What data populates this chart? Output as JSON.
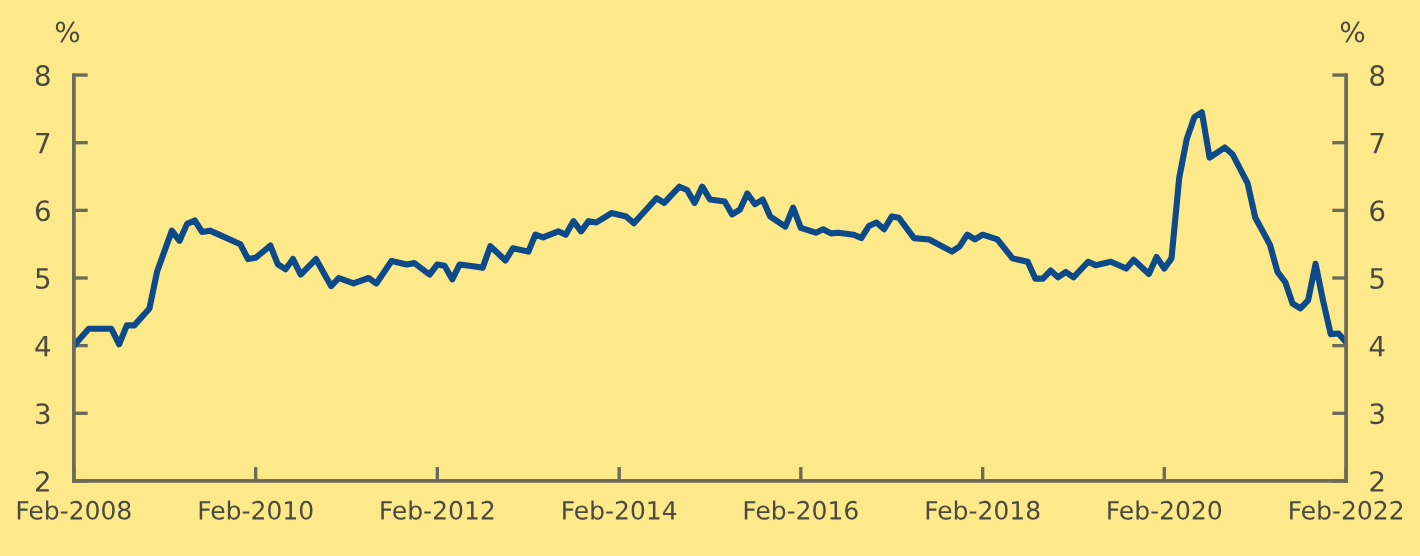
{
  "chart_data": {
    "type": "line",
    "ylabel": "%",
    "y2label": "%",
    "x": [
      "2008-02",
      "2008-04",
      "2008-07",
      "2008-08",
      "2008-09",
      "2008-10",
      "2008-12",
      "2009-01",
      "2009-03",
      "2009-04",
      "2009-05",
      "2009-06",
      "2009-07",
      "2009-08",
      "2009-10",
      "2009-12",
      "2010-01",
      "2010-02",
      "2010-04",
      "2010-05",
      "2010-06",
      "2010-07",
      "2010-08",
      "2010-10",
      "2010-12",
      "2011-01",
      "2011-03",
      "2011-05",
      "2011-06",
      "2011-08",
      "2011-10",
      "2011-11",
      "2012-01",
      "2012-02",
      "2012-03",
      "2012-04",
      "2012-05",
      "2012-07",
      "2012-08",
      "2012-09",
      "2012-11",
      "2012-12",
      "2013-02",
      "2013-03",
      "2013-04",
      "2013-06",
      "2013-07",
      "2013-08",
      "2013-09",
      "2013-10",
      "2013-11",
      "2014-01",
      "2014-03",
      "2014-04",
      "2014-07",
      "2014-08",
      "2014-10",
      "2014-11",
      "2014-12",
      "2015-01",
      "2015-02",
      "2015-04",
      "2015-05",
      "2015-06",
      "2015-07",
      "2015-08",
      "2015-09",
      "2015-10",
      "2015-12",
      "2016-01",
      "2016-02",
      "2016-04",
      "2016-05",
      "2016-06",
      "2016-07",
      "2016-09",
      "2016-10",
      "2016-11",
      "2016-12",
      "2017-01",
      "2017-02",
      "2017-03",
      "2017-05",
      "2017-07",
      "2017-10",
      "2017-11",
      "2017-12",
      "2018-01",
      "2018-02",
      "2018-04",
      "2018-06",
      "2018-08",
      "2018-09",
      "2018-10",
      "2018-11",
      "2018-12",
      "2019-01",
      "2019-02",
      "2019-04",
      "2019-05",
      "2019-07",
      "2019-09",
      "2019-10",
      "2019-12",
      "2020-01",
      "2020-02",
      "2020-03",
      "2020-04",
      "2020-05",
      "2020-06",
      "2020-07",
      "2020-08",
      "2020-10",
      "2020-11",
      "2021-01",
      "2021-02",
      "2021-04",
      "2021-05",
      "2021-06",
      "2021-07",
      "2021-08",
      "2021-09",
      "2021-10",
      "2021-11",
      "2021-12",
      "2022-01",
      "2022-02"
    ],
    "series": [
      {
        "color": "#0c4a8a",
        "values": [
          4.0,
          4.25,
          4.25,
          4.02,
          4.3,
          4.3,
          4.55,
          5.1,
          5.7,
          5.55,
          5.8,
          5.85,
          5.68,
          5.7,
          5.6,
          5.5,
          5.28,
          5.3,
          5.48,
          5.2,
          5.13,
          5.28,
          5.05,
          5.28,
          4.88,
          5.0,
          4.92,
          5.0,
          4.92,
          5.25,
          5.2,
          5.22,
          5.05,
          5.2,
          5.18,
          4.98,
          5.2,
          5.17,
          5.15,
          5.47,
          5.26,
          5.44,
          5.39,
          5.64,
          5.6,
          5.69,
          5.64,
          5.84,
          5.69,
          5.84,
          5.82,
          5.96,
          5.91,
          5.81,
          6.18,
          6.11,
          6.35,
          6.3,
          6.11,
          6.35,
          6.16,
          6.13,
          5.94,
          6.01,
          6.25,
          6.09,
          6.16,
          5.91,
          5.76,
          6.04,
          5.74,
          5.67,
          5.72,
          5.66,
          5.67,
          5.64,
          5.59,
          5.77,
          5.82,
          5.72,
          5.91,
          5.89,
          5.59,
          5.57,
          5.39,
          5.47,
          5.64,
          5.57,
          5.64,
          5.57,
          5.29,
          5.24,
          4.99,
          4.99,
          5.11,
          5.01,
          5.09,
          5.01,
          5.24,
          5.19,
          5.24,
          5.14,
          5.27,
          5.06,
          5.31,
          5.14,
          5.29,
          6.48,
          7.05,
          7.38,
          7.45,
          6.78,
          6.93,
          6.83,
          6.4,
          5.89,
          5.49,
          5.09,
          4.94,
          4.62,
          4.55,
          4.67,
          5.21,
          4.65,
          4.17,
          4.18,
          4.05
        ]
      }
    ],
    "xlim": [
      "2008-02",
      "2022-02"
    ],
    "xticks": [
      {
        "value": "2008-02",
        "label": "Feb-2008"
      },
      {
        "value": "2010-02",
        "label": "Feb-2010"
      },
      {
        "value": "2012-02",
        "label": "Feb-2012"
      },
      {
        "value": "2014-02",
        "label": "Feb-2014"
      },
      {
        "value": "2016-02",
        "label": "Feb-2016"
      },
      {
        "value": "2018-02",
        "label": "Feb-2018"
      },
      {
        "value": "2020-02",
        "label": "Feb-2020"
      },
      {
        "value": "2022-02",
        "label": "Feb-2022"
      }
    ],
    "ylim": [
      2,
      8
    ],
    "yticks": [
      2,
      3,
      4,
      5,
      6,
      7,
      8
    ],
    "y2lim": [
      2,
      8
    ],
    "y2ticks": [
      2,
      3,
      4,
      5,
      6,
      7,
      8
    ],
    "grid": false,
    "legend": false,
    "marker": "none",
    "line_style": "solid"
  }
}
